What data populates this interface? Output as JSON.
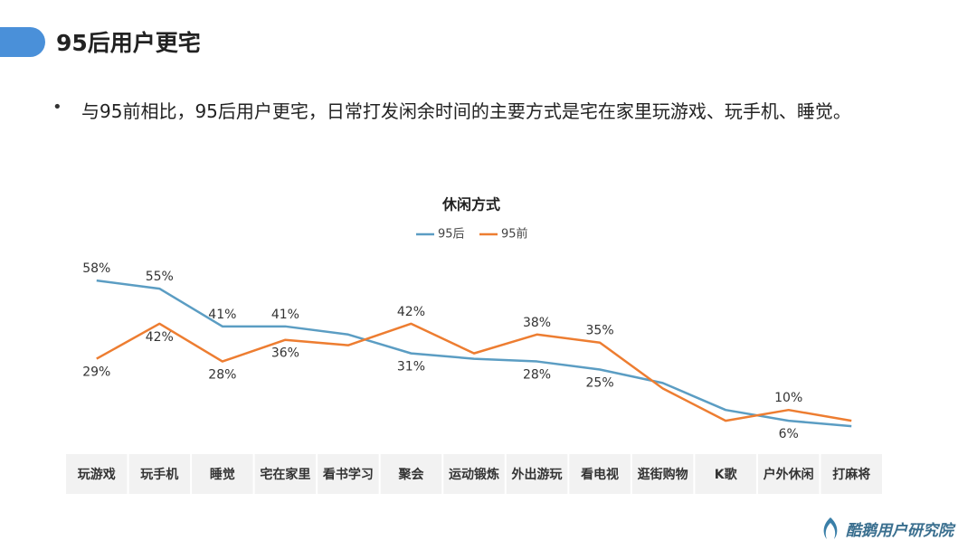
{
  "header": {
    "title": "95后用户更宅"
  },
  "bullet": "与95前相比，95后用户更宅，日常打发闲余时间的主要方式是宅在家里玩游戏、玩手机、睡觉。",
  "chart_data": {
    "type": "line",
    "title": "休闲方式",
    "categories": [
      "玩游戏",
      "玩手机",
      "睡觉",
      "宅在家里",
      "看书学习",
      "聚会",
      "运动锻炼",
      "外出游玩",
      "看电视",
      "逛街购物",
      "K歌",
      "户外休闲",
      "打麻将"
    ],
    "series": [
      {
        "name": "95后",
        "color": "#5b9dc3",
        "values": [
          58,
          55,
          41,
          41,
          38,
          31,
          29,
          28,
          25,
          20,
          10,
          6,
          4
        ],
        "value_labels": [
          "58%",
          "55%",
          "41%",
          "41%",
          null,
          "31%",
          null,
          "28%",
          "25%",
          null,
          null,
          "6%",
          null
        ]
      },
      {
        "name": "95前",
        "color": "#ed7d31",
        "values": [
          29,
          42,
          28,
          36,
          34,
          42,
          31,
          38,
          35,
          18,
          6,
          10,
          6
        ],
        "value_labels": [
          "29%",
          "42%",
          "28%",
          "36%",
          null,
          "42%",
          null,
          "38%",
          "35%",
          null,
          null,
          "10%",
          null
        ]
      }
    ],
    "ylim": [
      0,
      65
    ]
  },
  "footer": {
    "brand": "酷鹅用户研究院"
  }
}
